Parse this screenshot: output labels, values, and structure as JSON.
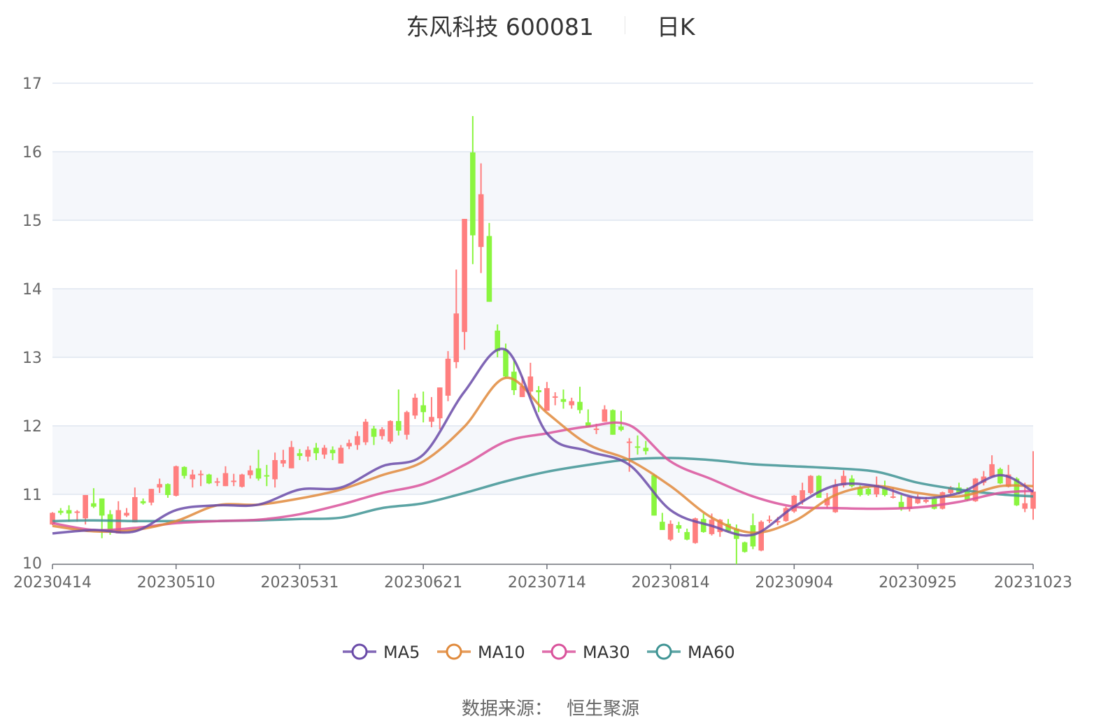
{
  "title": {
    "stock": "东风科技 600081",
    "period": "日K"
  },
  "source": {
    "label": "数据来源：",
    "provider": "恒生聚源"
  },
  "colors": {
    "up": "#ff7f7f",
    "down": "#8af53f",
    "ma5": "#6a4ba8",
    "ma10": "#e08a3c",
    "ma30": "#d9529b",
    "ma60": "#3f9494",
    "band": "#f5f7fb",
    "grid": "#dfe5f0"
  },
  "chart_data": {
    "type": "candlestick",
    "title": "东风科技 600081 日K",
    "ylim": [
      10,
      17
    ],
    "y_ticks": [
      "10",
      "11",
      "12",
      "13",
      "14",
      "15",
      "16",
      "17"
    ],
    "x_ticks": [
      {
        "index": 0,
        "label": "20230414"
      },
      {
        "index": 15,
        "label": "20230510"
      },
      {
        "index": 30,
        "label": "20230531"
      },
      {
        "index": 45,
        "label": "20230621"
      },
      {
        "index": 60,
        "label": "20230714"
      },
      {
        "index": 75,
        "label": "20230814"
      },
      {
        "index": 90,
        "label": "20230904"
      },
      {
        "index": 105,
        "label": "20230925"
      },
      {
        "index": 119,
        "label": "20231023"
      }
    ],
    "ohlc_format": [
      "open",
      "close",
      "low",
      "high"
    ],
    "candles": [
      [
        10.56,
        10.73,
        10.55,
        10.74
      ],
      [
        10.76,
        10.73,
        10.7,
        10.8
      ],
      [
        10.77,
        10.72,
        10.6,
        10.84
      ],
      [
        10.73,
        10.75,
        10.6,
        10.77
      ],
      [
        10.65,
        10.99,
        10.56,
        10.99
      ],
      [
        10.87,
        10.82,
        10.8,
        11.09
      ],
      [
        10.94,
        10.69,
        10.36,
        10.94
      ],
      [
        10.71,
        10.46,
        10.41,
        10.77
      ],
      [
        10.43,
        10.77,
        10.43,
        10.9
      ],
      [
        10.69,
        10.73,
        10.67,
        10.8
      ],
      [
        10.59,
        10.96,
        10.59,
        11.1
      ],
      [
        10.9,
        10.87,
        10.85,
        10.94
      ],
      [
        10.88,
        11.08,
        10.84,
        11.08
      ],
      [
        11.1,
        11.15,
        11.02,
        11.23
      ],
      [
        11.15,
        10.99,
        10.95,
        11.16
      ],
      [
        10.98,
        11.41,
        10.97,
        11.42
      ],
      [
        11.4,
        11.27,
        11.23,
        11.41
      ],
      [
        11.22,
        11.29,
        11.1,
        11.36
      ],
      [
        11.28,
        11.3,
        11.12,
        11.35
      ],
      [
        11.29,
        11.16,
        11.15,
        11.3
      ],
      [
        11.18,
        11.19,
        11.12,
        11.24
      ],
      [
        11.12,
        11.31,
        11.12,
        11.41
      ],
      [
        11.18,
        11.2,
        11.12,
        11.3
      ],
      [
        11.11,
        11.29,
        11.1,
        11.3
      ],
      [
        11.28,
        11.35,
        11.23,
        11.42
      ],
      [
        11.38,
        11.23,
        11.2,
        11.65
      ],
      [
        11.28,
        11.26,
        11.12,
        11.43
      ],
      [
        11.22,
        11.5,
        11.1,
        11.61
      ],
      [
        11.45,
        11.5,
        11.4,
        11.65
      ],
      [
        11.38,
        11.69,
        11.38,
        11.78
      ],
      [
        11.6,
        11.56,
        11.5,
        11.66
      ],
      [
        11.55,
        11.65,
        11.48,
        11.7
      ],
      [
        11.68,
        11.6,
        11.5,
        11.75
      ],
      [
        11.58,
        11.68,
        11.52,
        11.72
      ],
      [
        11.65,
        11.6,
        11.5,
        11.7
      ],
      [
        11.45,
        11.68,
        11.45,
        11.72
      ],
      [
        11.7,
        11.75,
        11.66,
        11.8
      ],
      [
        11.72,
        11.85,
        11.65,
        11.92
      ],
      [
        11.76,
        12.06,
        11.72,
        12.1
      ],
      [
        11.96,
        11.84,
        11.72,
        12.0
      ],
      [
        11.85,
        11.95,
        11.8,
        11.98
      ],
      [
        11.77,
        12.07,
        11.74,
        12.08
      ],
      [
        12.07,
        11.93,
        11.86,
        12.53
      ],
      [
        11.87,
        12.2,
        11.8,
        12.22
      ],
      [
        12.15,
        12.41,
        12.1,
        12.47
      ],
      [
        12.3,
        12.2,
        12.05,
        12.5
      ],
      [
        12.06,
        12.13,
        11.98,
        12.42
      ],
      [
        12.11,
        12.56,
        11.95,
        12.56
      ],
      [
        12.44,
        12.98,
        12.36,
        13.09
      ],
      [
        12.93,
        13.64,
        12.84,
        14.28
      ],
      [
        13.37,
        15.02,
        13.11,
        15.02
      ],
      [
        15.99,
        14.78,
        14.36,
        16.52
      ],
      [
        14.61,
        15.38,
        14.23,
        15.83
      ],
      [
        14.77,
        13.81,
        13.81,
        14.96
      ],
      [
        13.39,
        13.09,
        13.0,
        13.48
      ],
      [
        13.11,
        12.72,
        12.7,
        13.2
      ],
      [
        12.79,
        12.52,
        12.45,
        12.95
      ],
      [
        12.42,
        12.58,
        12.42,
        12.72
      ],
      [
        12.5,
        12.72,
        12.46,
        12.92
      ],
      [
        12.52,
        12.49,
        12.2,
        12.58
      ],
      [
        12.22,
        12.55,
        12.22,
        12.64
      ],
      [
        12.42,
        12.43,
        12.3,
        12.49
      ],
      [
        12.39,
        12.35,
        12.25,
        12.53
      ],
      [
        12.3,
        12.36,
        12.25,
        12.41
      ],
      [
        12.35,
        12.23,
        12.18,
        12.57
      ],
      [
        12.05,
        11.98,
        11.98,
        12.24
      ],
      [
        11.94,
        11.96,
        11.88,
        12.03
      ],
      [
        12.06,
        12.24,
        12.06,
        12.3
      ],
      [
        12.23,
        11.87,
        11.87,
        12.24
      ],
      [
        11.99,
        11.94,
        11.92,
        12.22
      ],
      [
        11.75,
        11.77,
        11.33,
        11.82
      ],
      [
        11.7,
        11.68,
        11.58,
        11.86
      ],
      [
        11.68,
        11.63,
        11.58,
        11.78
      ],
      [
        11.28,
        10.69,
        10.69,
        11.3
      ],
      [
        10.6,
        10.48,
        10.48,
        10.73
      ],
      [
        10.34,
        10.57,
        10.32,
        10.62
      ],
      [
        10.55,
        10.5,
        10.44,
        10.6
      ],
      [
        10.45,
        10.34,
        10.33,
        10.5
      ],
      [
        10.29,
        10.65,
        10.28,
        10.66
      ],
      [
        10.64,
        10.45,
        10.44,
        10.72
      ],
      [
        10.42,
        10.63,
        10.4,
        10.72
      ],
      [
        10.45,
        10.63,
        10.38,
        10.64
      ],
      [
        10.57,
        10.46,
        10.44,
        10.64
      ],
      [
        10.5,
        10.35,
        9.98,
        10.56
      ],
      [
        10.3,
        10.16,
        10.15,
        10.31
      ],
      [
        10.55,
        10.24,
        10.2,
        10.72
      ],
      [
        10.18,
        10.6,
        10.17,
        10.62
      ],
      [
        10.61,
        10.63,
        10.58,
        10.69
      ],
      [
        10.59,
        10.61,
        10.55,
        10.67
      ],
      [
        10.61,
        10.8,
        10.6,
        10.82
      ],
      [
        10.75,
        10.98,
        10.73,
        10.99
      ],
      [
        10.9,
        11.06,
        10.85,
        11.17
      ],
      [
        11.02,
        11.27,
        11.0,
        11.28
      ],
      [
        11.27,
        10.95,
        10.95,
        11.28
      ],
      [
        10.84,
        10.94,
        10.8,
        11.02
      ],
      [
        10.74,
        11.14,
        10.73,
        11.22
      ],
      [
        11.13,
        11.27,
        11.1,
        11.35
      ],
      [
        11.23,
        11.12,
        11.1,
        11.28
      ],
      [
        11.1,
        10.99,
        10.97,
        11.13
      ],
      [
        11.08,
        11.0,
        10.98,
        11.1
      ],
      [
        11.0,
        11.14,
        10.96,
        11.26
      ],
      [
        11.1,
        10.99,
        10.97,
        11.2
      ],
      [
        10.95,
        10.97,
        10.94,
        11.1
      ],
      [
        10.89,
        10.8,
        10.76,
        10.99
      ],
      [
        10.79,
        10.96,
        10.75,
        10.97
      ],
      [
        10.87,
        10.96,
        10.86,
        11.0
      ],
      [
        10.89,
        10.92,
        10.87,
        10.96
      ],
      [
        10.94,
        10.79,
        10.78,
        10.96
      ],
      [
        10.79,
        11.03,
        10.78,
        11.04
      ],
      [
        11.02,
        11.1,
        11.0,
        11.12
      ],
      [
        11.1,
        11.02,
        11.0,
        11.17
      ],
      [
        11.04,
        10.92,
        10.9,
        11.1
      ],
      [
        10.9,
        11.23,
        10.89,
        11.24
      ],
      [
        11.17,
        11.26,
        11.13,
        11.34
      ],
      [
        11.26,
        11.44,
        11.25,
        11.57
      ],
      [
        11.37,
        11.16,
        11.15,
        11.39
      ],
      [
        11.11,
        11.29,
        11.1,
        11.43
      ],
      [
        11.23,
        10.84,
        10.83,
        11.25
      ],
      [
        10.79,
        10.87,
        10.74,
        11.17
      ],
      [
        10.79,
        11.04,
        10.63,
        11.63
      ]
    ],
    "ma_sample_indices": [
      0,
      5,
      10,
      15,
      20,
      25,
      30,
      35,
      40,
      45,
      50,
      55,
      60,
      65,
      70,
      75,
      80,
      85,
      90,
      95,
      100,
      105,
      110,
      115,
      119
    ],
    "series": [
      {
        "name": "MA5",
        "values": [
          10.43,
          10.48,
          10.46,
          10.77,
          10.84,
          10.85,
          11.07,
          11.1,
          11.41,
          11.58,
          12.5,
          13.11,
          11.89,
          11.63,
          11.43,
          10.77,
          10.54,
          10.41,
          10.82,
          11.13,
          11.12,
          10.95,
          11.02,
          11.28,
          11.04
        ]
      },
      {
        "name": "MA10",
        "values": [
          10.54,
          10.46,
          10.48,
          10.61,
          10.84,
          10.85,
          10.94,
          11.07,
          11.28,
          11.48,
          11.99,
          12.7,
          12.19,
          11.73,
          11.5,
          11.12,
          10.66,
          10.44,
          10.61,
          10.99,
          11.12,
          11.02,
          10.97,
          11.12,
          11.12
        ]
      },
      {
        "name": "MA30",
        "values": [
          10.58,
          10.48,
          10.51,
          10.58,
          10.61,
          10.63,
          10.71,
          10.85,
          11.02,
          11.15,
          11.43,
          11.77,
          11.89,
          11.99,
          12.01,
          11.48,
          11.22,
          10.97,
          10.82,
          10.8,
          10.79,
          10.81,
          10.89,
          11.02,
          11.05
        ]
      },
      {
        "name": "MA60",
        "values": [
          10.61,
          10.62,
          10.61,
          10.61,
          10.61,
          10.62,
          10.64,
          10.66,
          10.8,
          10.87,
          11.02,
          11.19,
          11.33,
          11.43,
          11.51,
          11.53,
          11.5,
          11.44,
          11.41,
          11.38,
          11.33,
          11.17,
          11.07,
          11.0,
          10.97
        ]
      }
    ],
    "legend": [
      "MA5",
      "MA10",
      "MA30",
      "MA60"
    ],
    "legend_position": "bottom",
    "grid": true
  }
}
